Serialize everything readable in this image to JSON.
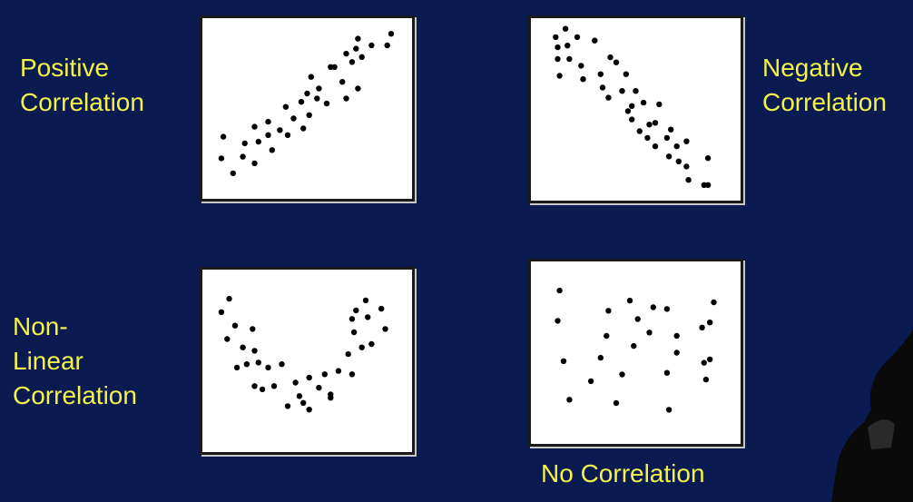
{
  "theme": {
    "background": "#0c1a52",
    "label_color": "#f2f24a",
    "panel_color": "#ffffff",
    "dot_color": "#000000"
  },
  "labels": {
    "positive": "Positive\nCorrelation",
    "negative": "Negative\nCorrelation",
    "nonlinear": "Non-\nLinear\nCorrelation",
    "none": "No Correlation"
  },
  "chart_data": [
    {
      "type": "scatter",
      "grid": false,
      "xlim": [
        0,
        100
      ],
      "ylim": [
        0,
        100
      ],
      "points": [
        [
          7,
          33
        ],
        [
          6,
          20
        ],
        [
          12,
          11
        ],
        [
          18,
          29
        ],
        [
          17,
          21
        ],
        [
          23,
          17
        ],
        [
          23,
          39
        ],
        [
          25,
          30
        ],
        [
          30,
          34
        ],
        [
          30,
          42
        ],
        [
          32,
          25
        ],
        [
          36,
          37
        ],
        [
          39,
          51
        ],
        [
          40,
          34
        ],
        [
          43,
          44
        ],
        [
          47,
          54
        ],
        [
          48,
          38
        ],
        [
          51,
          46
        ],
        [
          50,
          59
        ],
        [
          52,
          69
        ],
        [
          55,
          56
        ],
        [
          56,
          62
        ],
        [
          60,
          53
        ],
        [
          62,
          75
        ],
        [
          64,
          75
        ],
        [
          68,
          66
        ],
        [
          70,
          83
        ],
        [
          70,
          56
        ],
        [
          73,
          78
        ],
        [
          75,
          86
        ],
        [
          76,
          92
        ],
        [
          76,
          62
        ],
        [
          78,
          81
        ],
        [
          83,
          88
        ],
        [
          91,
          88
        ],
        [
          93,
          95
        ]
      ]
    },
    {
      "type": "scatter",
      "grid": false,
      "xlim": [
        0,
        100
      ],
      "ylim": [
        0,
        100
      ],
      "points": [
        [
          9,
          93
        ],
        [
          10,
          87
        ],
        [
          10,
          80
        ],
        [
          11,
          70
        ],
        [
          14,
          98
        ],
        [
          15,
          88
        ],
        [
          16,
          80
        ],
        [
          20,
          93
        ],
        [
          22,
          76
        ],
        [
          23,
          68
        ],
        [
          29,
          91
        ],
        [
          32,
          71
        ],
        [
          33,
          63
        ],
        [
          37,
          81
        ],
        [
          36,
          57
        ],
        [
          40,
          78
        ],
        [
          43,
          61
        ],
        [
          45,
          71
        ],
        [
          46,
          49
        ],
        [
          48,
          52
        ],
        [
          48,
          44
        ],
        [
          50,
          61
        ],
        [
          52,
          37
        ],
        [
          54,
          54
        ],
        [
          56,
          33
        ],
        [
          57,
          41
        ],
        [
          60,
          28
        ],
        [
          60,
          42
        ],
        [
          62,
          53
        ],
        [
          66,
          33
        ],
        [
          67,
          22
        ],
        [
          68,
          38
        ],
        [
          71,
          28
        ],
        [
          72,
          19
        ],
        [
          76,
          16
        ],
        [
          76,
          31
        ],
        [
          77,
          8
        ],
        [
          85,
          5
        ],
        [
          87,
          21
        ],
        [
          87,
          5
        ]
      ]
    },
    {
      "type": "scatter",
      "grid": false,
      "xlim": [
        0,
        100
      ],
      "ylim": [
        0,
        100
      ],
      "points": [
        [
          10,
          87
        ],
        [
          6,
          79
        ],
        [
          13,
          71
        ],
        [
          9,
          63
        ],
        [
          22,
          69
        ],
        [
          17,
          58
        ],
        [
          23,
          56
        ],
        [
          14,
          46
        ],
        [
          19,
          48
        ],
        [
          25,
          49
        ],
        [
          30,
          46
        ],
        [
          33,
          35
        ],
        [
          23,
          35
        ],
        [
          27,
          33
        ],
        [
          37,
          48
        ],
        [
          40,
          23
        ],
        [
          44,
          37
        ],
        [
          46,
          29
        ],
        [
          48,
          25
        ],
        [
          51,
          21
        ],
        [
          51,
          40
        ],
        [
          56,
          34
        ],
        [
          59,
          42
        ],
        [
          62,
          30
        ],
        [
          66,
          44
        ],
        [
          62,
          28
        ],
        [
          71,
          54
        ],
        [
          73,
          42
        ],
        [
          75,
          80
        ],
        [
          73,
          75
        ],
        [
          74,
          67
        ],
        [
          78,
          58
        ],
        [
          83,
          60
        ],
        [
          80,
          86
        ],
        [
          81,
          76
        ],
        [
          88,
          81
        ],
        [
          90,
          69
        ]
      ]
    },
    {
      "type": "scatter",
      "grid": false,
      "xlim": [
        0,
        100
      ],
      "ylim": [
        0,
        100
      ],
      "points": [
        [
          11,
          87
        ],
        [
          10,
          69
        ],
        [
          13,
          45
        ],
        [
          16,
          22
        ],
        [
          27,
          33
        ],
        [
          32,
          47
        ],
        [
          35,
          60
        ],
        [
          36,
          75
        ],
        [
          40,
          20
        ],
        [
          43,
          37
        ],
        [
          47,
          81
        ],
        [
          49,
          54
        ],
        [
          51,
          70
        ],
        [
          59,
          77
        ],
        [
          57,
          62
        ],
        [
          66,
          76
        ],
        [
          66,
          38
        ],
        [
          71,
          60
        ],
        [
          67,
          16
        ],
        [
          71,
          50
        ],
        [
          84,
          65
        ],
        [
          85,
          44
        ],
        [
          86,
          34
        ],
        [
          90,
          80
        ],
        [
          88,
          46
        ],
        [
          88,
          68
        ]
      ]
    }
  ]
}
